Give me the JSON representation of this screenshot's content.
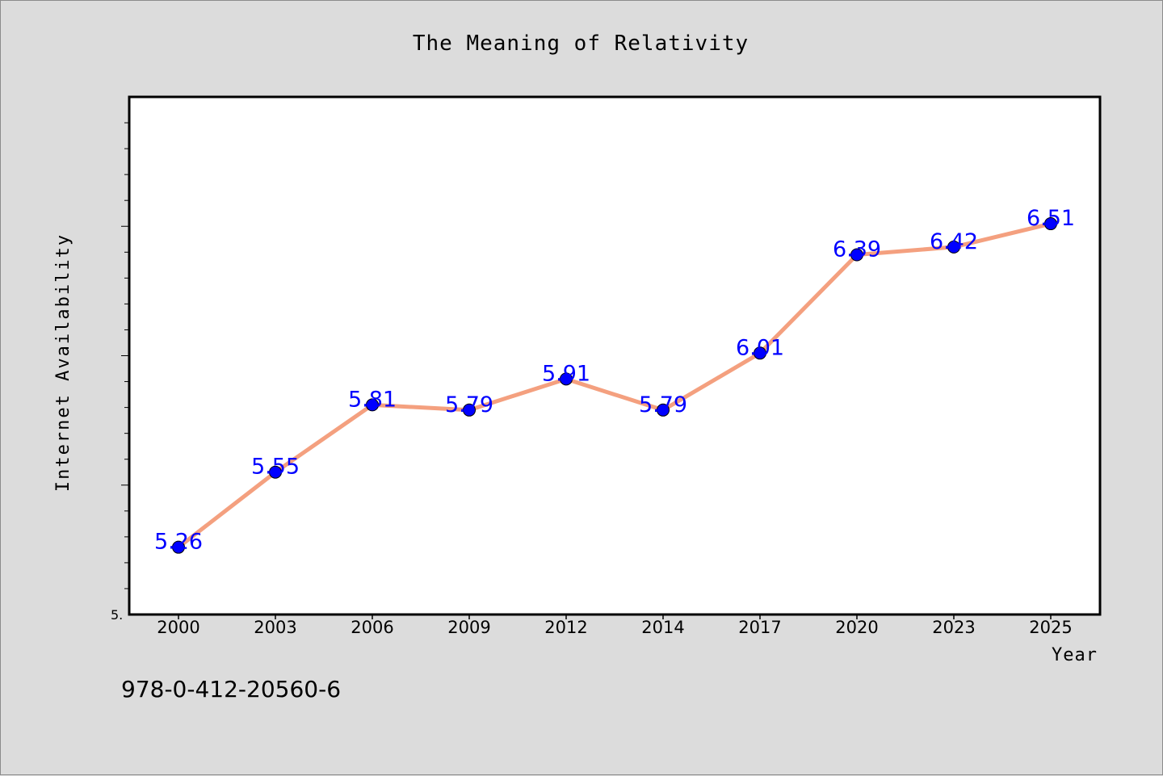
{
  "chart_data": {
    "type": "line",
    "title": "The Meaning of Relativity",
    "xlabel": "Year",
    "ylabel": "Internet Availability",
    "categories": [
      "2000",
      "2003",
      "2006",
      "2009",
      "2012",
      "2014",
      "2017",
      "2020",
      "2023",
      "2025"
    ],
    "values": [
      5.26,
      5.55,
      5.81,
      5.79,
      5.91,
      5.79,
      6.01,
      6.39,
      6.42,
      6.51
    ],
    "data_labels": [
      "5.26",
      "5.55",
      "5.81",
      "5.79",
      "5.91",
      "5.79",
      "6.01",
      "6.39",
      "6.42",
      "6.51"
    ],
    "ylim": [
      5.0,
      7.0
    ],
    "y_tick_label": "5.",
    "grid": false,
    "line_color": "#f4a07f",
    "marker_color": "#0000ff",
    "label_color": "#0000ff",
    "plot_background": "#ffffff",
    "page_background": "#dcdcdc"
  },
  "footer": {
    "isbn": "978-0-412-20560-6"
  }
}
